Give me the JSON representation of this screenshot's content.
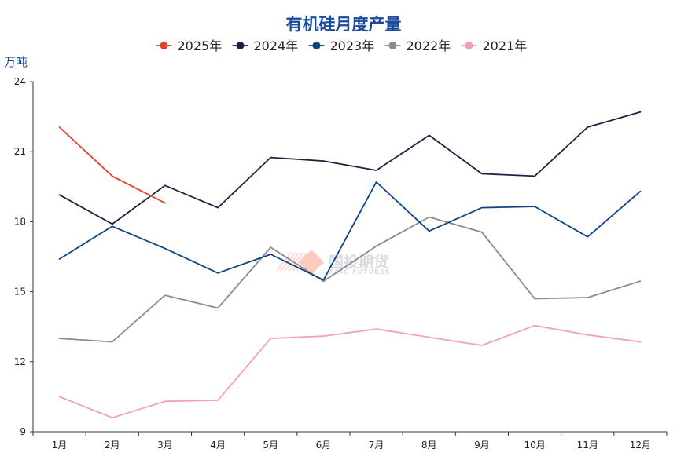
{
  "chart_data": {
    "type": "line",
    "title": "有机硅月度产量",
    "ylabel": "万吨",
    "xlabel": "",
    "categories": [
      "1月",
      "2月",
      "3月",
      "4月",
      "5月",
      "6月",
      "7月",
      "8月",
      "9月",
      "10月",
      "11月",
      "12月"
    ],
    "ylim": [
      9,
      24
    ],
    "yticks": [
      9,
      12,
      15,
      18,
      21,
      24
    ],
    "legend_position": "top-center",
    "grid": false,
    "series": [
      {
        "name": "2025年",
        "color": "#e0422a",
        "values": [
          22.05,
          19.95,
          18.8,
          null,
          null,
          null,
          null,
          null,
          null,
          null,
          null,
          null
        ]
      },
      {
        "name": "2024年",
        "color": "#1c2340",
        "values": [
          19.15,
          17.9,
          19.55,
          18.6,
          20.75,
          20.6,
          20.2,
          21.7,
          20.05,
          19.95,
          22.05,
          22.7
        ]
      },
      {
        "name": "2023年",
        "color": "#0e4384",
        "values": [
          16.4,
          17.8,
          16.85,
          15.8,
          16.6,
          15.5,
          19.7,
          17.6,
          18.6,
          18.65,
          17.35,
          19.3
        ]
      },
      {
        "name": "2022年",
        "color": "#8a8a8a",
        "values": [
          13.0,
          12.85,
          14.85,
          14.3,
          16.9,
          15.45,
          16.95,
          18.2,
          17.55,
          14.7,
          14.75,
          15.45
        ]
      },
      {
        "name": "2021年",
        "color": "#f2a0b4",
        "values": [
          10.5,
          9.6,
          10.3,
          10.35,
          13.0,
          13.1,
          13.4,
          13.05,
          12.7,
          13.55,
          13.15,
          12.85
        ]
      }
    ]
  },
  "colors": {
    "title": "#1a4a9c",
    "ylabel": "#1a4a9c",
    "axis": "#333333",
    "watermark": "#f7b8a8"
  },
  "watermark": {
    "text": "国投期货",
    "subtext": "SDIC FUTURES"
  }
}
